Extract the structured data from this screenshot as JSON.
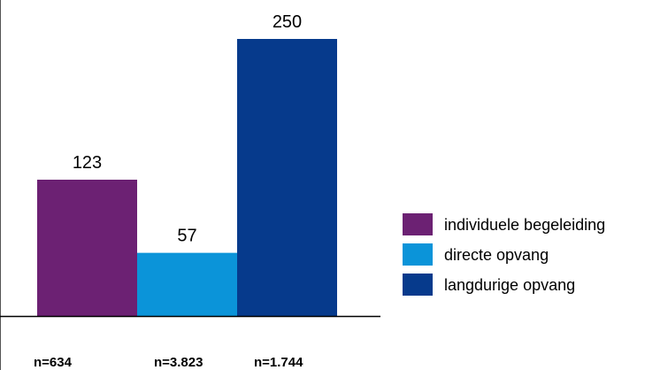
{
  "chart_data": {
    "type": "bar",
    "categories": [
      "n=634",
      "n=3.823",
      "n=1.744"
    ],
    "series": [
      {
        "name": "individuele begeleiding",
        "color": "#6c2173",
        "value": 123,
        "value_label": "123"
      },
      {
        "name": "directe opvang",
        "color": "#0b94d9",
        "value": 57,
        "value_label": "57"
      },
      {
        "name": "langdurige opvang",
        "color": "#063a8c",
        "value": 250,
        "value_label": "250"
      }
    ],
    "ylim": [
      0,
      250
    ],
    "grid": false,
    "legend_position": "right"
  }
}
